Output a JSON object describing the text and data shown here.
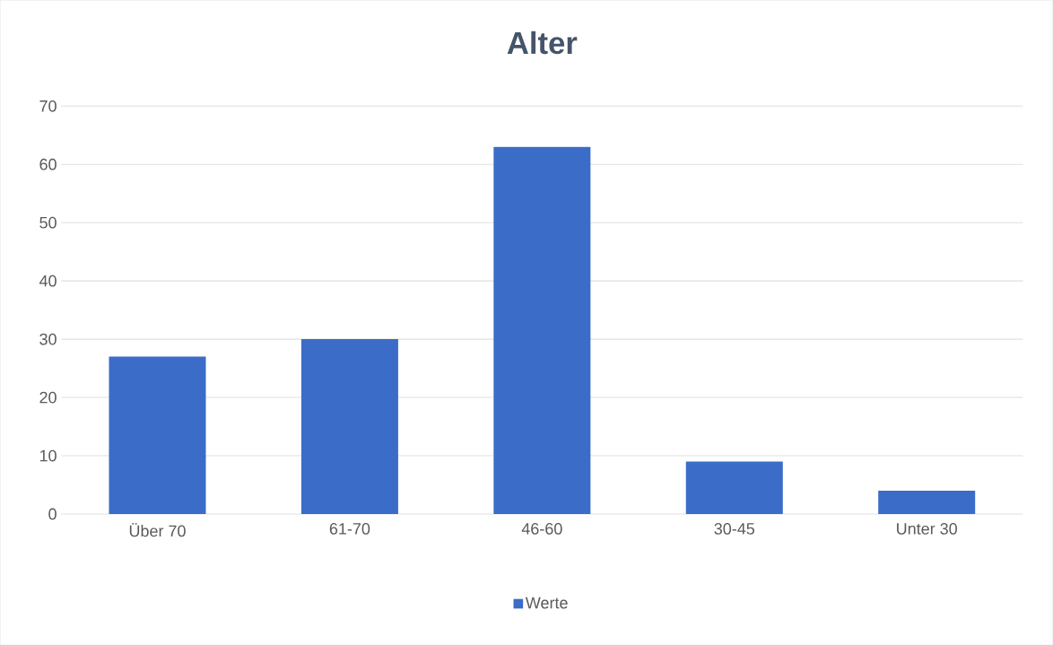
{
  "chart_data": {
    "type": "bar",
    "title": "Alter",
    "categories": [
      "Über 70",
      "61-70",
      "46-60",
      "30-45",
      "Unter 30"
    ],
    "series": [
      {
        "name": "Werte",
        "color": "#3b6cc7",
        "values": [
          27,
          30,
          63,
          9,
          4
        ]
      }
    ],
    "ylim": [
      0,
      70
    ],
    "yticks": [
      0,
      10,
      20,
      30,
      40,
      50,
      60,
      70
    ],
    "grid": "y",
    "legend": "bottom"
  }
}
